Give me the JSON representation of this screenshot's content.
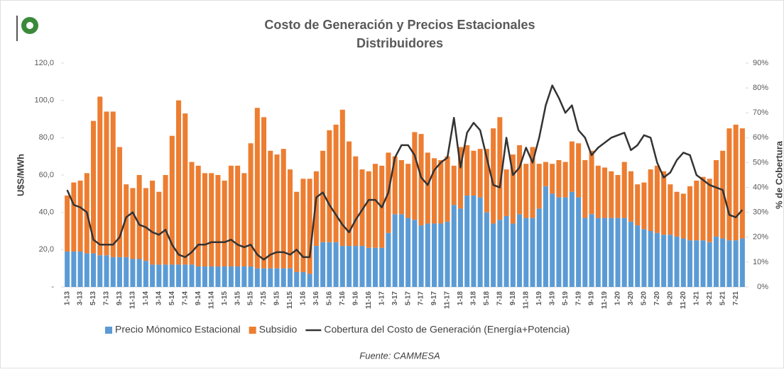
{
  "chart_data": {
    "type": "bar",
    "stacked": true,
    "title": "Costo de Generación y Precios Estacionales",
    "subtitle": "Distribuidores",
    "y_label": "U$S/MWh",
    "y2_label": "% de Cobertura",
    "source": "Fuente: CAMMESA",
    "categories": [
      "1-13",
      null,
      "3-13",
      null,
      "5-13",
      null,
      "7-13",
      null,
      "9-13",
      null,
      "11-13",
      null,
      "1-14",
      null,
      "3-14",
      null,
      "5-14",
      null,
      "7-14",
      null,
      "9-14",
      null,
      "11-14",
      null,
      "1-15",
      null,
      "3-15",
      null,
      "5-15",
      null,
      "7-15",
      null,
      "9-15",
      null,
      "11-15",
      null,
      "1-16",
      null,
      "3-16",
      null,
      "5-16",
      null,
      "7-16",
      null,
      "9-16",
      null,
      "11-16",
      null,
      "1-17",
      null,
      "3-17",
      null,
      "5-17",
      null,
      "7-17",
      null,
      "9-17",
      null,
      "11-17",
      null,
      "1-18",
      null,
      "3-18",
      null,
      "5-18",
      null,
      "7-18",
      null,
      "9-18",
      null,
      "11-18",
      null,
      "1-19",
      null,
      "3-19",
      null,
      "5-19",
      null,
      "7-19",
      null,
      "9-19",
      null,
      "11-19",
      null,
      "1-20",
      null,
      "3-20",
      null,
      "5-20",
      null,
      "7-20",
      null,
      "9-20",
      null,
      "11-20",
      null,
      "1-21",
      null,
      "3-21",
      null,
      "5-21",
      null,
      "7-21",
      null
    ],
    "series": [
      {
        "name": "Precio Mónomico Estacional",
        "color": "#5b9bd5",
        "type": "bar",
        "values": [
          19,
          19,
          19,
          18,
          18,
          17,
          17,
          16,
          16,
          16,
          15,
          15,
          14,
          12,
          12,
          12,
          12,
          12,
          12,
          12,
          11,
          11,
          11,
          11,
          11,
          11,
          11,
          11,
          11,
          10,
          10,
          10,
          10,
          10,
          10,
          8,
          8,
          7,
          22,
          24,
          24,
          24,
          22,
          22,
          22,
          22,
          21,
          21,
          21,
          29,
          39,
          39,
          37,
          36,
          33,
          34,
          34,
          34,
          35,
          44,
          42,
          49,
          49,
          48,
          40,
          34,
          36,
          38,
          34,
          39,
          37,
          37,
          42,
          54,
          50,
          48,
          48,
          51,
          48,
          37,
          39,
          37,
          37,
          37,
          37,
          37,
          35,
          33,
          31,
          30,
          29,
          28,
          28,
          27,
          26,
          25,
          25,
          25,
          24,
          27,
          26,
          25,
          25,
          26
        ]
      },
      {
        "name": "Subsidio",
        "color": "#ed7d31",
        "type": "bar",
        "values": [
          30,
          37,
          38,
          43,
          71,
          85,
          77,
          78,
          59,
          39,
          38,
          45,
          39,
          45,
          39,
          48,
          69,
          88,
          81,
          55,
          54,
          50,
          50,
          49,
          46,
          54,
          54,
          50,
          66,
          86,
          81,
          63,
          61,
          64,
          53,
          43,
          50,
          51,
          40,
          49,
          60,
          63,
          73,
          56,
          48,
          41,
          41,
          45,
          44,
          43,
          31,
          29,
          29,
          47,
          49,
          38,
          35,
          34,
          35,
          21,
          33,
          27,
          24,
          26,
          34,
          51,
          55,
          25,
          37,
          37,
          29,
          38,
          24,
          13,
          16,
          20,
          19,
          27,
          29,
          31,
          34,
          28,
          27,
          25,
          23,
          30,
          27,
          22,
          25,
          33,
          36,
          34,
          27,
          24,
          24,
          29,
          32,
          34,
          34,
          41,
          47,
          60,
          62,
          59
        ]
      },
      {
        "name": "Cobertura del Costo de Generación (Energía+Potencia)",
        "color": "#333333",
        "type": "line",
        "axis": "y2",
        "values": [
          39,
          33,
          32,
          30,
          19,
          17,
          17,
          17,
          20,
          28,
          30,
          25,
          24,
          22,
          21,
          23,
          17,
          13,
          12,
          14,
          17,
          17,
          18,
          18,
          18,
          19,
          17,
          16,
          17,
          13,
          11,
          13,
          14,
          14,
          13,
          15,
          12,
          12,
          36,
          38,
          33,
          29,
          25,
          22,
          27,
          31,
          35,
          35,
          32,
          38,
          52,
          57,
          57,
          53,
          44,
          41,
          47,
          50,
          52,
          68,
          48,
          62,
          66,
          63,
          52,
          41,
          40,
          60,
          45,
          48,
          56,
          50,
          60,
          73,
          81,
          76,
          70,
          73,
          63,
          60,
          53,
          56,
          58,
          60,
          61,
          62,
          55,
          57,
          61,
          60,
          50,
          44,
          46,
          51,
          54,
          53,
          45,
          43,
          41,
          40,
          39,
          29,
          28,
          31
        ]
      }
    ],
    "ylim": [
      0,
      120
    ],
    "yticks": [
      {
        "value": 0,
        "label": "-"
      },
      {
        "value": 20,
        "label": "20,0"
      },
      {
        "value": 40,
        "label": "40,0"
      },
      {
        "value": 60,
        "label": "60,0"
      },
      {
        "value": 80,
        "label": "80,0"
      },
      {
        "value": 100,
        "label": "100,0"
      },
      {
        "value": 120,
        "label": "120,0"
      }
    ],
    "y2lim": [
      0,
      90
    ],
    "y2ticks": [
      {
        "value": 0,
        "label": "0%"
      },
      {
        "value": 10,
        "label": "10%"
      },
      {
        "value": 20,
        "label": "20%"
      },
      {
        "value": 30,
        "label": "30%"
      },
      {
        "value": 40,
        "label": "40%"
      },
      {
        "value": 50,
        "label": "50%"
      },
      {
        "value": 60,
        "label": "60%"
      },
      {
        "value": 70,
        "label": "70%"
      },
      {
        "value": 80,
        "label": "80%"
      },
      {
        "value": 90,
        "label": "90%"
      }
    ],
    "grid": false,
    "legend": "bottom"
  }
}
